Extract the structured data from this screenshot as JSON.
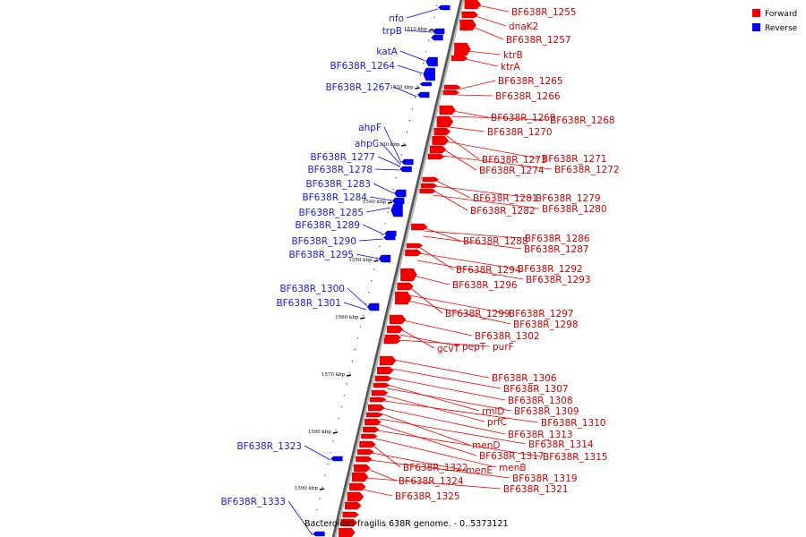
{
  "caption": "Bacteroides fragilis 638R genome. - 0..5373121",
  "legend": [
    {
      "label": "Forward",
      "color": "#f20000"
    },
    {
      "label": "Reverse",
      "color": "#0000f2"
    }
  ],
  "kbp_marks": [
    "1510 kbp",
    "1520 kbp",
    "1530 kbp",
    "1540 kbp",
    "1550 kbp",
    "1560 kbp",
    "1570 kbp",
    "1580 kbp",
    "1590 kbp"
  ],
  "forward_labels": [
    "BF638R_1255",
    "dnaK2",
    "BF638R_1257",
    "ktrB",
    "ktrA",
    "BF638R_1265",
    "BF638R_1266",
    "BF638R_1269",
    "BF638R_1268",
    "BF638R_1270",
    "BF638R_1273",
    "BF638R_1271",
    "BF638R_1274",
    "BF638R_1272",
    "BF638R_1281",
    "BF638R_1279",
    "BF638R_1282",
    "BF638R_1280",
    "BF638R_1288",
    "BF638R_1286",
    "BF638R_1287",
    "BF638R_1294",
    "BF638R_1292",
    "BF638R_1293",
    "BF638R_1296",
    "BF638R_1299",
    "BF638R_1297",
    "BF638R_1298",
    "BF638R_1302",
    "gcvT",
    "pepT",
    "purF",
    "BF638R_1306",
    "BF638R_1307",
    "BF638R_1308",
    "rmlD",
    "BF638R_1309",
    "prfC",
    "BF638R_1310",
    "BF638R_1313",
    "menD",
    "BF638R_1314",
    "BF638R_1317",
    "BF638R_1315",
    "menB",
    "BF638R_1322",
    "menE",
    "BF638R_1319",
    "BF638R_1324",
    "BF638R_1321",
    "BF638R_1325"
  ],
  "reverse_labels": [
    "nfo",
    "trpB",
    "katA",
    "BF638R_1264",
    "BF638R_1267",
    "ahpF",
    "ahpC",
    "BF638R_1277",
    "BF638R_1278",
    "BF638R_1283",
    "BF638R_1284",
    "BF638R_1285",
    "BF638R_1289",
    "BF638R_1290",
    "BF638R_1295",
    "BF638R_1300",
    "BF638R_1301",
    "BF638R_1323",
    "BF638R_1333"
  ]
}
